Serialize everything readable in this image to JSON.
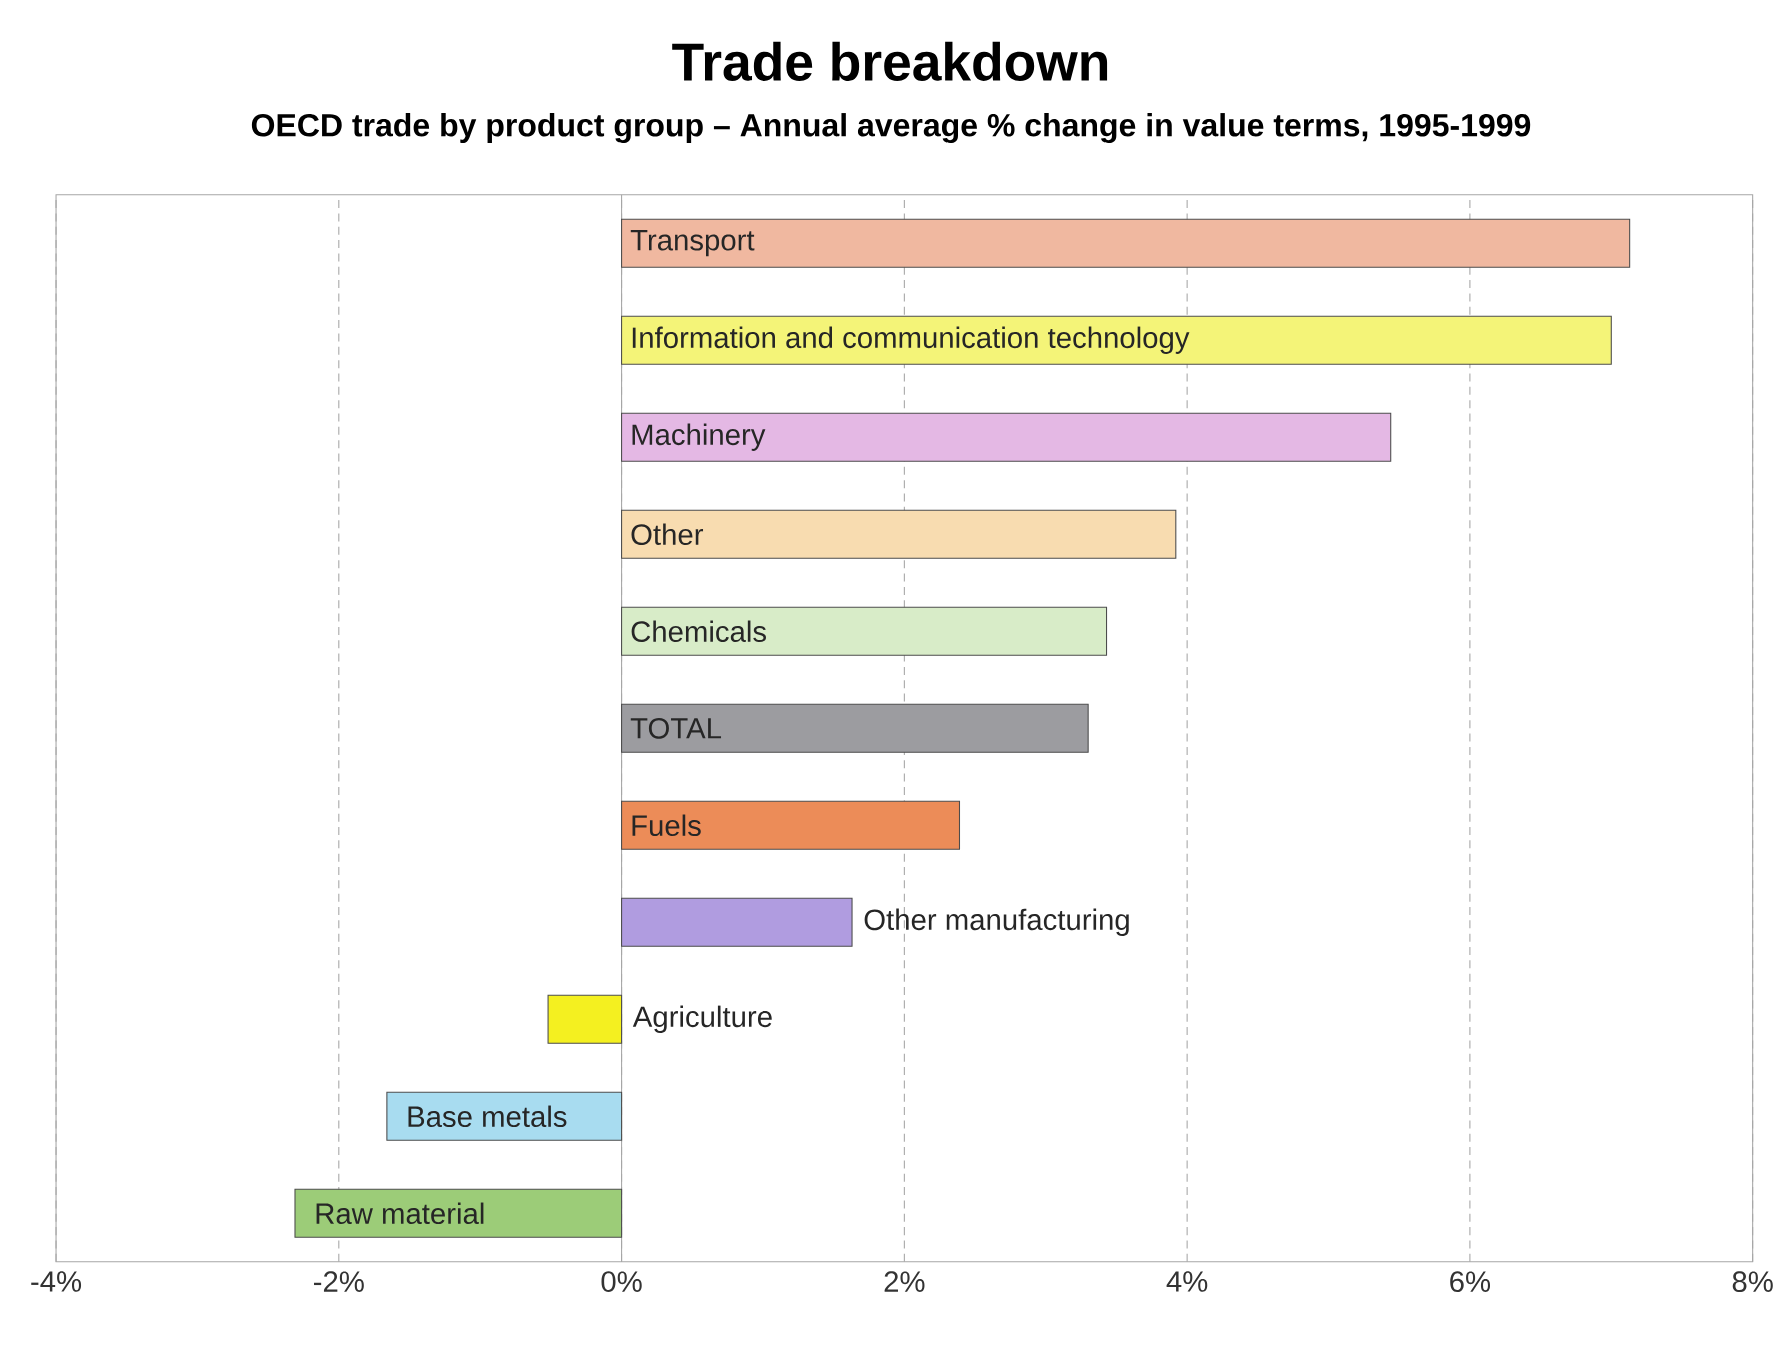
{
  "chart_data": {
    "type": "bar",
    "orientation": "horizontal",
    "title": "Trade breakdown",
    "subtitle": "OECD trade by product group – Annual average % change in value terms, 1995-1999",
    "categories": [
      "Transport",
      "Information and communication technology",
      "Machinery",
      "Other",
      "Chemicals",
      "TOTAL",
      "Fuels",
      "Other manufacturing",
      "Agriculture",
      "Base metals",
      "Raw material"
    ],
    "values": [
      7.13,
      7.0,
      5.44,
      3.92,
      3.43,
      3.3,
      2.39,
      1.63,
      -0.52,
      -1.66,
      -2.31
    ],
    "colors": [
      "#f0b8a0",
      "#f4f478",
      "#e4b8e4",
      "#f8dcb0",
      "#d8ecc8",
      "#9c9ca0",
      "#ec8c58",
      "#b09ce0",
      "#f4f020",
      "#a8dcf0",
      "#9ccc78"
    ],
    "xlim": [
      -4,
      8
    ],
    "xticks": [
      {
        "value": -4,
        "label": "-4%"
      },
      {
        "value": -2,
        "label": "-2%"
      },
      {
        "value": 0,
        "label": "0%"
      },
      {
        "value": 2,
        "label": "2%"
      },
      {
        "value": 4,
        "label": "4%"
      },
      {
        "value": 6,
        "label": "6%"
      },
      {
        "value": 8,
        "label": "8%"
      }
    ],
    "grid": "x",
    "tick_labels": "x"
  }
}
